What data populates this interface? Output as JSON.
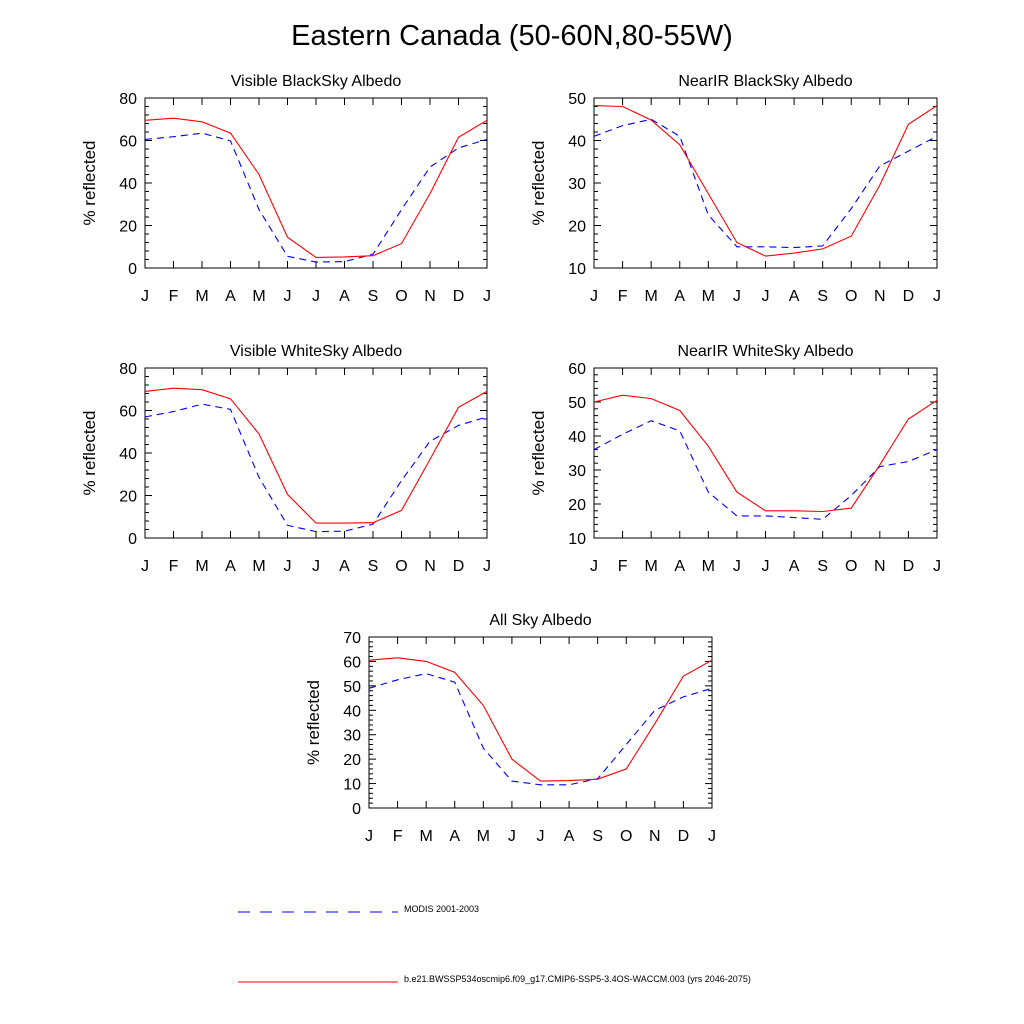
{
  "title": "Eastern Canada (50-60N,80-55W)",
  "legend": [
    {
      "label": "MODIS 2001-2003",
      "color": "#0000ff",
      "dash": "dashed"
    },
    {
      "label": "b.e21.BWSSP534oscmip6.f09_g17.CMIP6-SSP5-3.4OS-WACCM.003 (yrs 2046-2075)",
      "color": "#ff0000",
      "dash": "solid"
    }
  ],
  "chart_data": [
    {
      "type": "line",
      "title": "Visible BlackSky Albedo",
      "ylabel": "% reflected",
      "xlabel": "",
      "categories": [
        "J",
        "F",
        "M",
        "A",
        "M",
        "J",
        "J",
        "A",
        "S",
        "O",
        "N",
        "D",
        "J"
      ],
      "ylim": [
        0,
        80
      ],
      "yticks": [
        0,
        20,
        40,
        60,
        80
      ],
      "series": [
        {
          "name": "MODIS 2001-2003",
          "color": "#0000ff",
          "dash": "dashed",
          "values": [
            60.5,
            61.8,
            63.5,
            59.8,
            27.5,
            5.5,
            2.8,
            3.0,
            6.5,
            27.5,
            47.5,
            56.5,
            60.5
          ]
        },
        {
          "name": "b.e21.BWSSP534oscmip6.f09_g17.CMIP6-SSP5-3.4OS-WACCM.003 (yrs 2046-2075)",
          "color": "#ff0000",
          "dash": "solid",
          "values": [
            69.5,
            70.5,
            68.8,
            63.5,
            44.0,
            14.5,
            5.0,
            5.2,
            5.8,
            11.5,
            35.0,
            61.5,
            69.5
          ]
        }
      ]
    },
    {
      "type": "line",
      "title": "NearIR BlackSky Albedo",
      "ylabel": "% reflected",
      "xlabel": "",
      "categories": [
        "J",
        "F",
        "M",
        "A",
        "M",
        "J",
        "J",
        "A",
        "S",
        "O",
        "N",
        "D",
        "J"
      ],
      "ylim": [
        10,
        50
      ],
      "yticks": [
        10,
        20,
        30,
        40,
        50
      ],
      "series": [
        {
          "name": "MODIS 2001-2003",
          "color": "#0000ff",
          "dash": "dashed",
          "values": [
            41.0,
            43.5,
            45.0,
            41.0,
            22.5,
            15.0,
            15.0,
            14.8,
            15.2,
            24.0,
            34.0,
            37.5,
            41.0
          ]
        },
        {
          "name": "b.e21.BWSSP534oscmip6.f09_g17.CMIP6-SSP5-3.4OS-WACCM.003 (yrs 2046-2075)",
          "color": "#ff0000",
          "dash": "solid",
          "values": [
            48.2,
            48.0,
            44.8,
            39.0,
            27.5,
            16.0,
            12.8,
            13.5,
            14.5,
            17.5,
            29.5,
            43.8,
            48.2
          ]
        }
      ]
    },
    {
      "type": "line",
      "title": "Visible WhiteSky Albedo",
      "ylabel": "% reflected",
      "xlabel": "",
      "categories": [
        "J",
        "F",
        "M",
        "A",
        "M",
        "J",
        "J",
        "A",
        "S",
        "O",
        "N",
        "D",
        "J"
      ],
      "ylim": [
        0,
        80
      ],
      "yticks": [
        0,
        20,
        40,
        60,
        80
      ],
      "series": [
        {
          "name": "MODIS 2001-2003",
          "color": "#0000ff",
          "dash": "dashed",
          "values": [
            57.0,
            59.5,
            63.0,
            60.5,
            28.5,
            6.0,
            3.0,
            3.2,
            6.5,
            27.0,
            45.5,
            53.0,
            57.0
          ]
        },
        {
          "name": "b.e21.BWSSP534oscmip6.f09_g17.CMIP6-SSP5-3.4OS-WACCM.003 (yrs 2046-2075)",
          "color": "#ff0000",
          "dash": "solid",
          "values": [
            69.0,
            70.5,
            69.8,
            65.5,
            49.0,
            20.5,
            7.0,
            7.0,
            7.2,
            13.0,
            37.0,
            61.5,
            69.0
          ]
        }
      ]
    },
    {
      "type": "line",
      "title": "NearIR WhiteSky Albedo",
      "ylabel": "% reflected",
      "xlabel": "",
      "categories": [
        "J",
        "F",
        "M",
        "A",
        "M",
        "J",
        "J",
        "A",
        "S",
        "O",
        "N",
        "D",
        "J"
      ],
      "ylim": [
        10,
        60
      ],
      "yticks": [
        10,
        20,
        30,
        40,
        50,
        60
      ],
      "series": [
        {
          "name": "MODIS 2001-2003",
          "color": "#0000ff",
          "dash": "dashed",
          "values": [
            36.0,
            40.5,
            44.5,
            41.5,
            23.5,
            16.5,
            16.5,
            16.0,
            15.5,
            22.5,
            31.0,
            32.5,
            36.0
          ]
        },
        {
          "name": "b.e21.BWSSP534oscmip6.f09_g17.CMIP6-SSP5-3.4OS-WACCM.003 (yrs 2046-2075)",
          "color": "#ff0000",
          "dash": "solid",
          "values": [
            50.0,
            52.0,
            51.0,
            47.5,
            37.0,
            23.5,
            18.0,
            18.0,
            17.8,
            18.8,
            31.5,
            45.0,
            50.5
          ]
        }
      ]
    },
    {
      "type": "line",
      "title": "All Sky Albedo",
      "ylabel": "% reflected",
      "xlabel": "",
      "categories": [
        "J",
        "F",
        "M",
        "A",
        "M",
        "J",
        "J",
        "A",
        "S",
        "O",
        "N",
        "D",
        "J"
      ],
      "ylim": [
        0,
        70
      ],
      "yticks": [
        0,
        10,
        20,
        30,
        40,
        50,
        60,
        70
      ],
      "series": [
        {
          "name": "MODIS 2001-2003",
          "color": "#0000ff",
          "dash": "dashed",
          "values": [
            49.0,
            52.5,
            55.0,
            51.5,
            24.5,
            11.0,
            9.5,
            9.5,
            12.0,
            26.0,
            40.0,
            45.5,
            49.0
          ]
        },
        {
          "name": "b.e21.BWSSP534oscmip6.f09_g17.CMIP6-SSP5-3.4OS-WACCM.003 (yrs 2046-2075)",
          "color": "#ff0000",
          "dash": "solid",
          "values": [
            60.5,
            61.5,
            60.0,
            55.5,
            42.0,
            20.0,
            11.0,
            11.2,
            11.8,
            16.0,
            34.5,
            54.0,
            60.5
          ]
        }
      ]
    }
  ]
}
